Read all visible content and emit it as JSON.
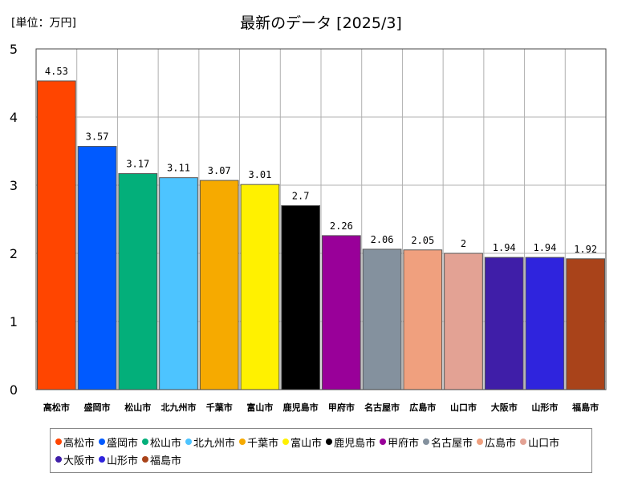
{
  "header": {
    "unit": "[単位：万円]",
    "title": "最新のデータ [2025/3]"
  },
  "chart_data": {
    "type": "bar",
    "categories": [
      "高松市",
      "盛岡市",
      "松山市",
      "北九州市",
      "千葉市",
      "富山市",
      "鹿児島市",
      "甲府市",
      "名古屋市",
      "広島市",
      "山口市",
      "大阪市",
      "山形市",
      "福島市"
    ],
    "values": [
      4.53,
      3.57,
      3.17,
      3.11,
      3.07,
      3.01,
      2.7,
      2.26,
      2.06,
      2.05,
      2,
      1.94,
      1.94,
      1.92
    ],
    "value_labels": [
      "4.53",
      "3.57",
      "3.17",
      "3.11",
      "3.07",
      "3.01",
      "2.7",
      "2.26",
      "2.06",
      "2.05",
      "2",
      "1.94",
      "1.94",
      "1.92"
    ],
    "colors": [
      "#FF4500",
      "#005AFF",
      "#03AF7A",
      "#4DC4FF",
      "#F6AA00",
      "#FFF100",
      "#000000",
      "#990099",
      "#84919E",
      "#F0A07E",
      "#E3A294",
      "#3F1EA8",
      "#2F24DD",
      "#A9431A"
    ],
    "ylim": [
      0,
      5
    ],
    "yticks": [
      "0",
      "1",
      "2",
      "3",
      "4",
      "5"
    ],
    "grid": true,
    "legend_position": "bottom"
  }
}
